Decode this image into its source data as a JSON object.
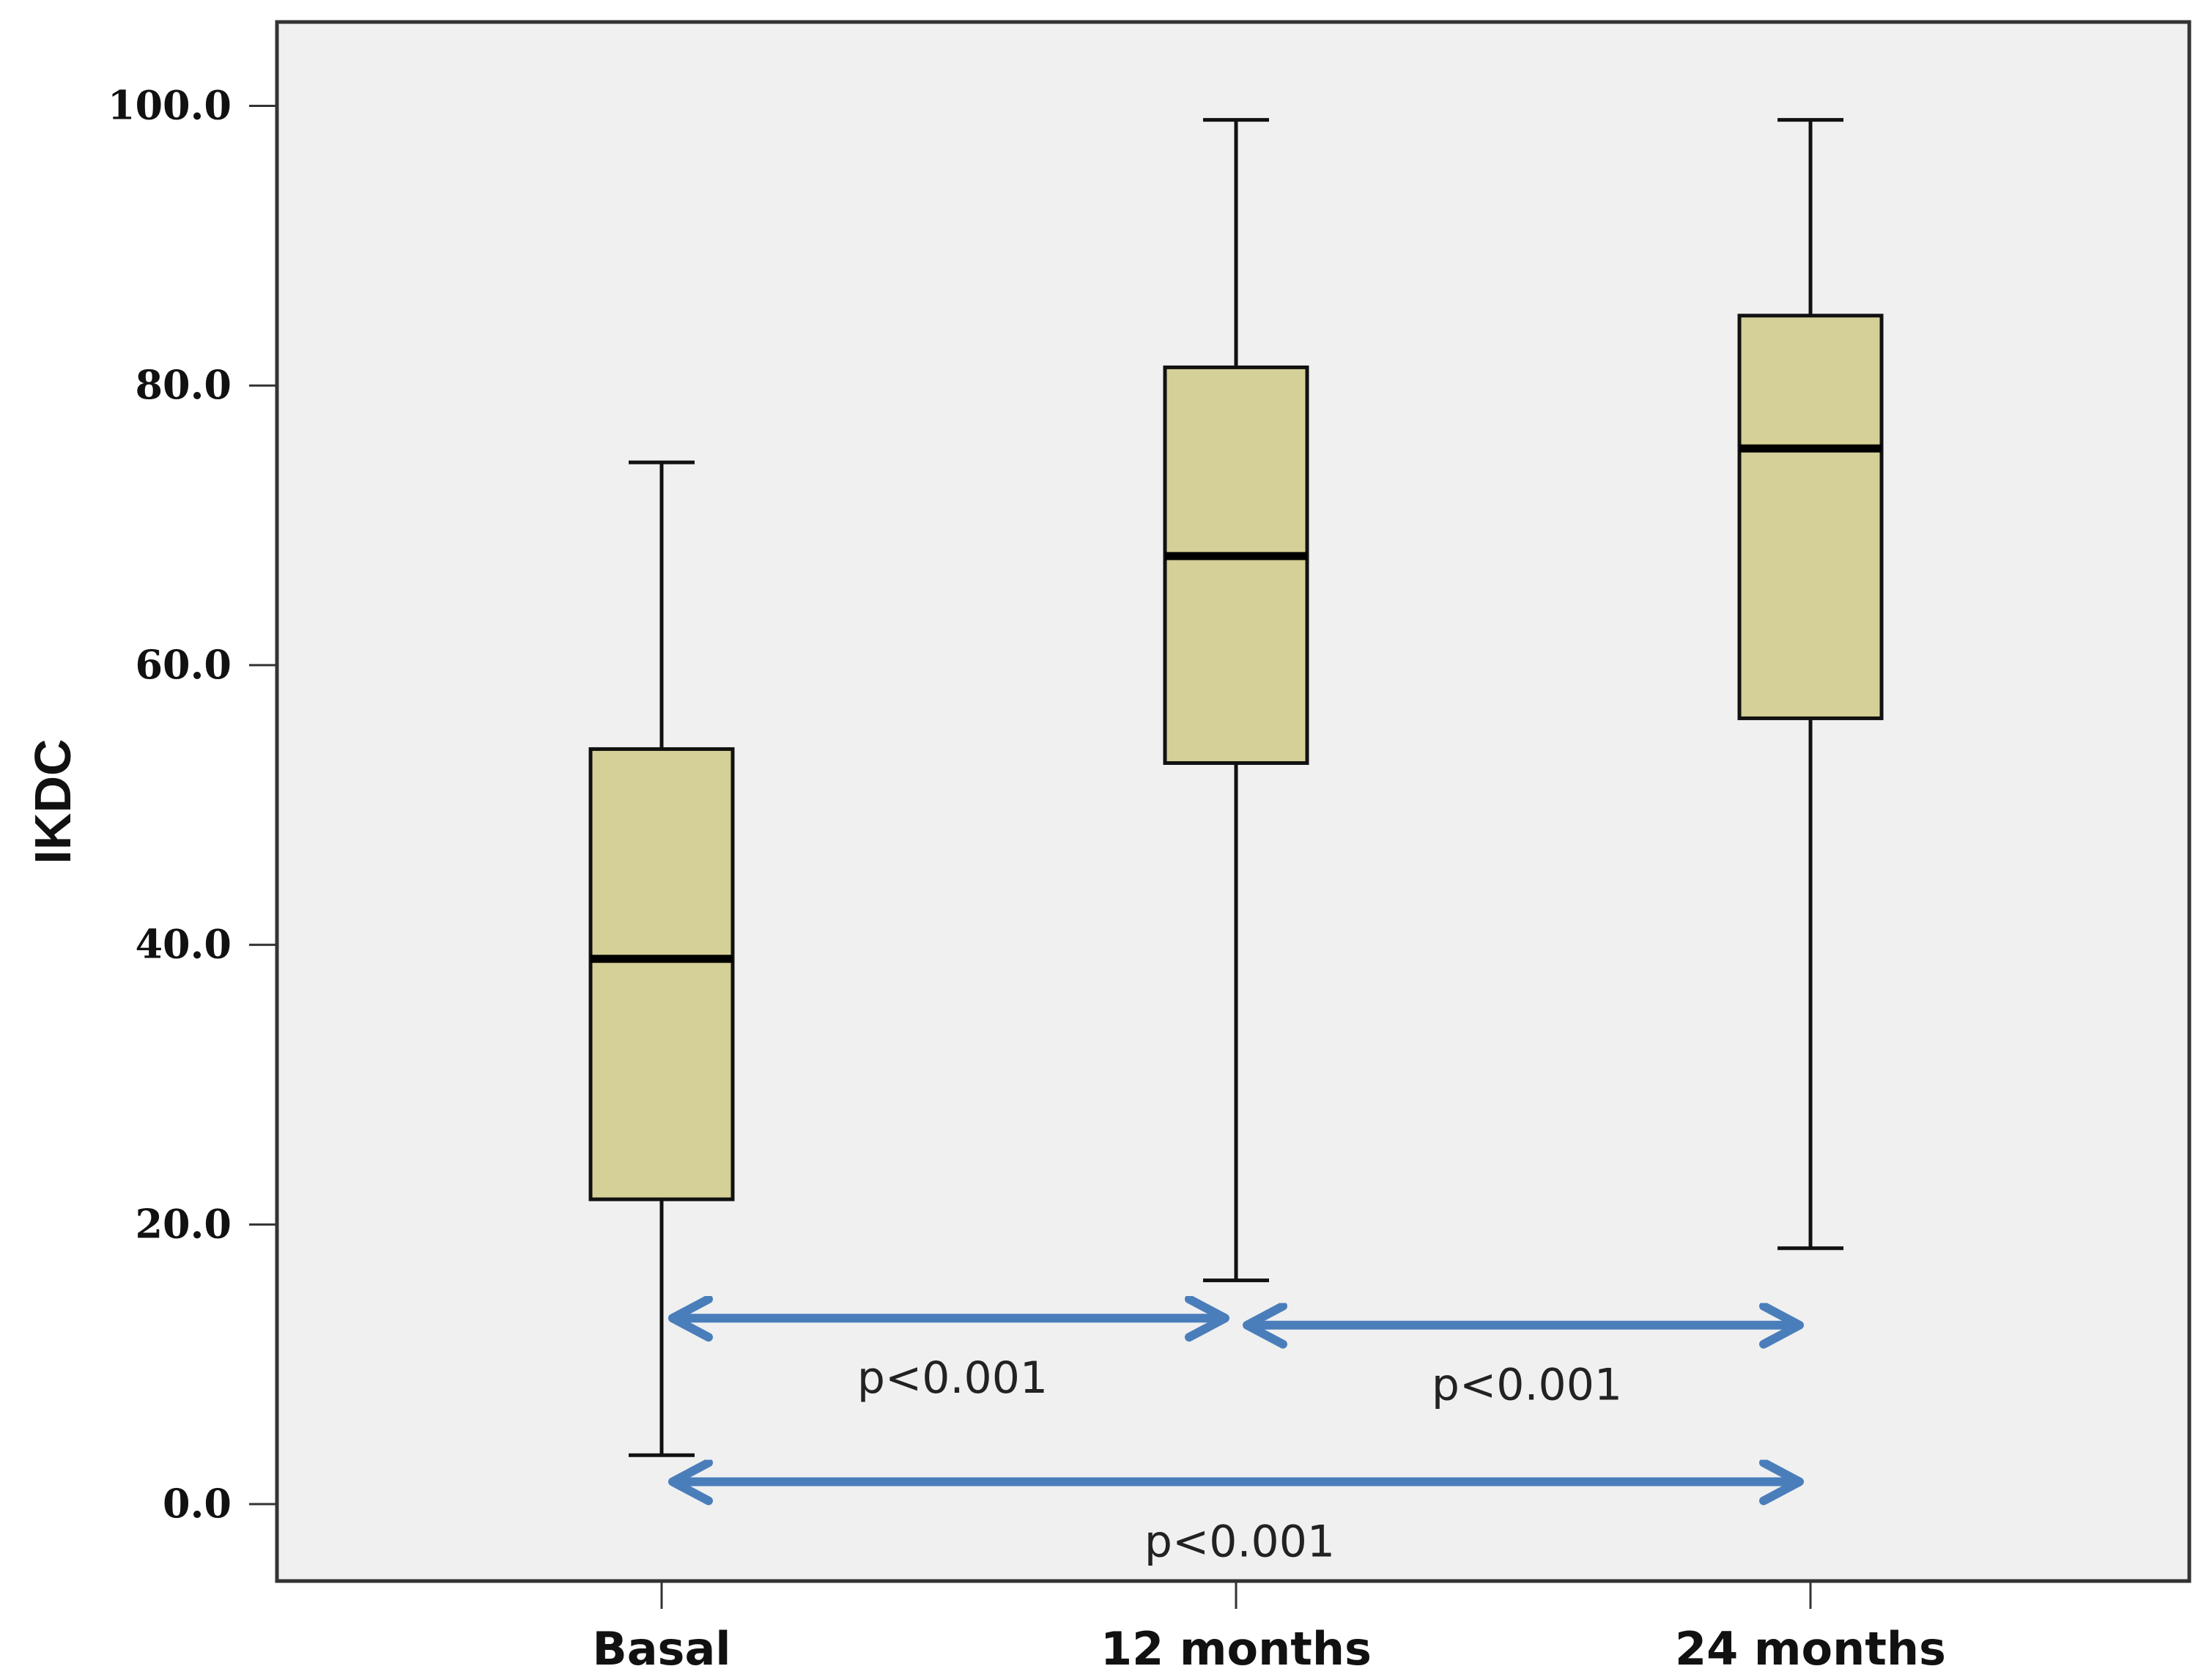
{
  "chart_data": {
    "type": "boxplot",
    "title": "",
    "xlabel": "",
    "ylabel": "IKDC",
    "ylim": [
      -5.5,
      106
    ],
    "y_ticks": [
      0,
      20,
      40,
      60,
      80,
      100
    ],
    "y_tick_labels": [
      "0.0",
      "20.0",
      "40.0",
      "60.0",
      "80.0",
      "100.0"
    ],
    "categories": [
      "Basal",
      "12 months",
      "24 months"
    ],
    "boxes": [
      {
        "label": "Basal",
        "min": 3.5,
        "q1": 21.8,
        "median": 39.0,
        "q3": 54.0,
        "max": 74.5
      },
      {
        "label": "12 months",
        "min": 16.0,
        "q1": 53.0,
        "median": 67.8,
        "q3": 81.3,
        "max": 99.0
      },
      {
        "label": "24 months",
        "min": 18.3,
        "q1": 56.2,
        "median": 75.5,
        "q3": 85.0,
        "max": 99.0
      }
    ],
    "comparisons": [
      {
        "from": "Basal",
        "to": "12 months",
        "y": 13.3,
        "label": "p<0.001"
      },
      {
        "from": "12 months",
        "to": "24 months",
        "y": 12.8,
        "label": "p<0.001"
      },
      {
        "from": "Basal",
        "to": "24 months",
        "y": 1.6,
        "label": "p<0.001"
      }
    ],
    "colors": {
      "box_fill": "#d5d097",
      "plot_background": "#f0f0f0",
      "arrow": "#4a7ebb"
    }
  }
}
